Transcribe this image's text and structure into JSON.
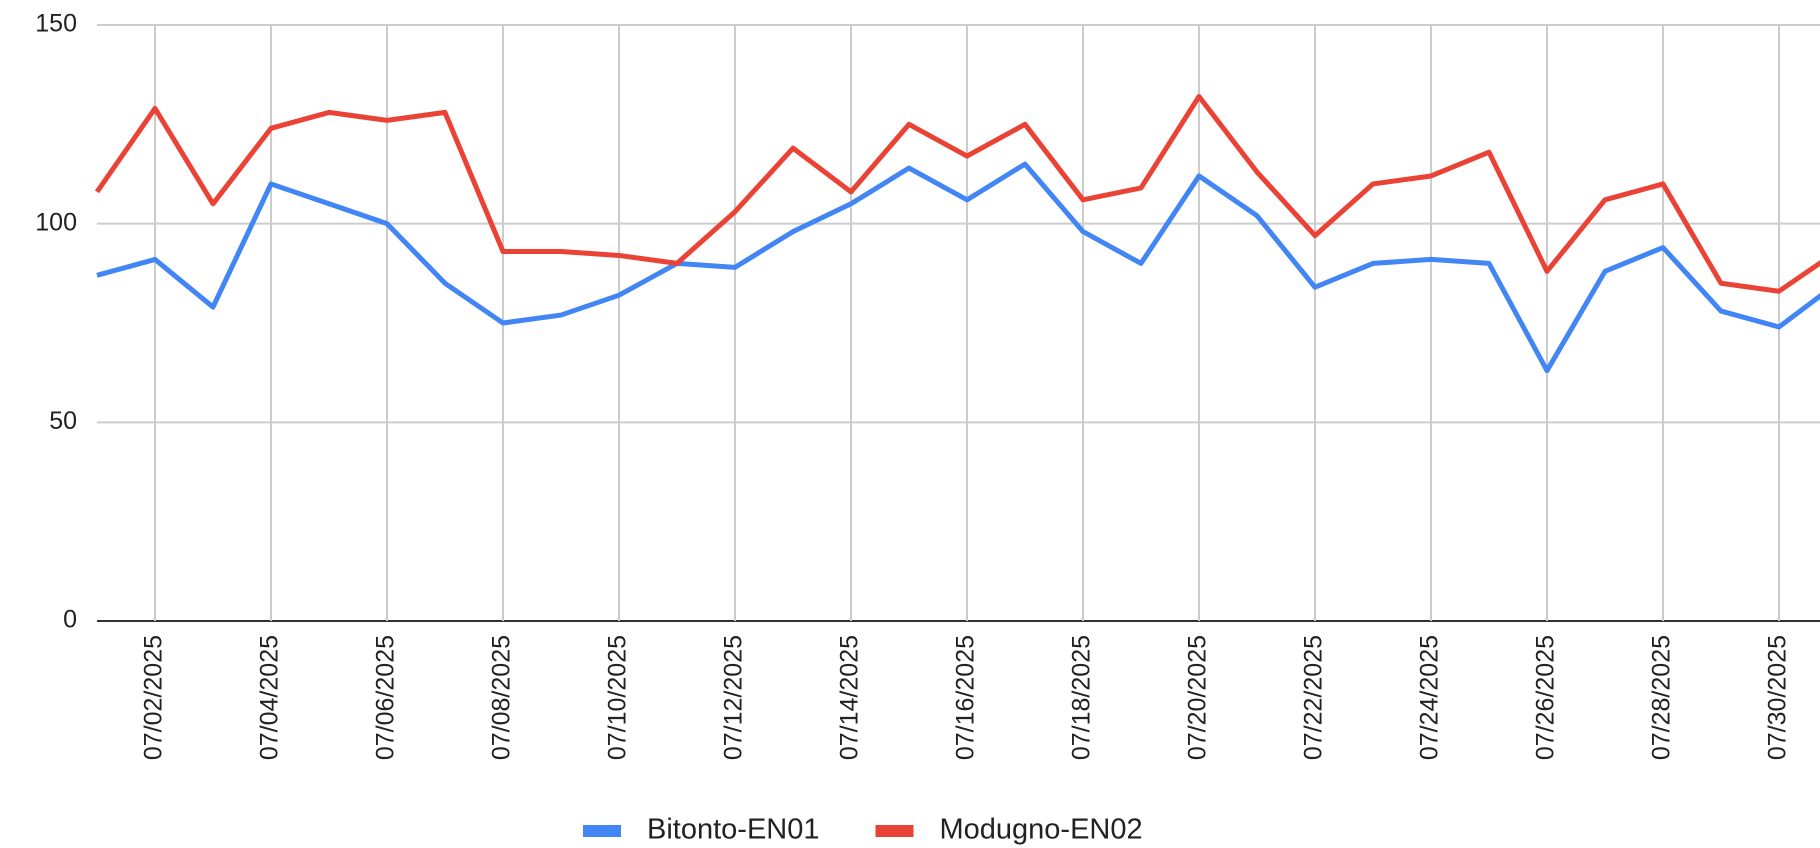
{
  "chart_data": {
    "type": "line",
    "categories": [
      null,
      "07/02/2025",
      null,
      "07/04/2025",
      null,
      "07/06/2025",
      null,
      "07/08/2025",
      null,
      "07/10/2025",
      null,
      "07/12/2025",
      null,
      "07/14/2025",
      null,
      "07/16/2025",
      null,
      "07/18/2025",
      null,
      "07/20/2025",
      null,
      "07/22/2025",
      null,
      "07/24/2025",
      null,
      "07/26/2025",
      null,
      "07/28/2025",
      null,
      "07/30/2025",
      null
    ],
    "series": [
      {
        "name": "Bitonto-EN01",
        "color": "#4285f4",
        "values": [
          87,
          91,
          79,
          110,
          105,
          100,
          85,
          75,
          77,
          82,
          90,
          89,
          98,
          105,
          114,
          106,
          115,
          98,
          90,
          112,
          102,
          84,
          90,
          91,
          90,
          63,
          88,
          94,
          78,
          74,
          85
        ]
      },
      {
        "name": "Modugno-EN02",
        "color": "#ea4335",
        "values": [
          108,
          129,
          105,
          124,
          128,
          126,
          128,
          93,
          93,
          92,
          90,
          103,
          119,
          108,
          125,
          117,
          125,
          106,
          109,
          132,
          113,
          97,
          110,
          112,
          118,
          88,
          106,
          110,
          85,
          83,
          93
        ]
      }
    ],
    "ylim": [
      0,
      150
    ],
    "yticks": [
      0,
      50,
      100,
      150
    ],
    "grid": true,
    "legend": "bottom"
  }
}
